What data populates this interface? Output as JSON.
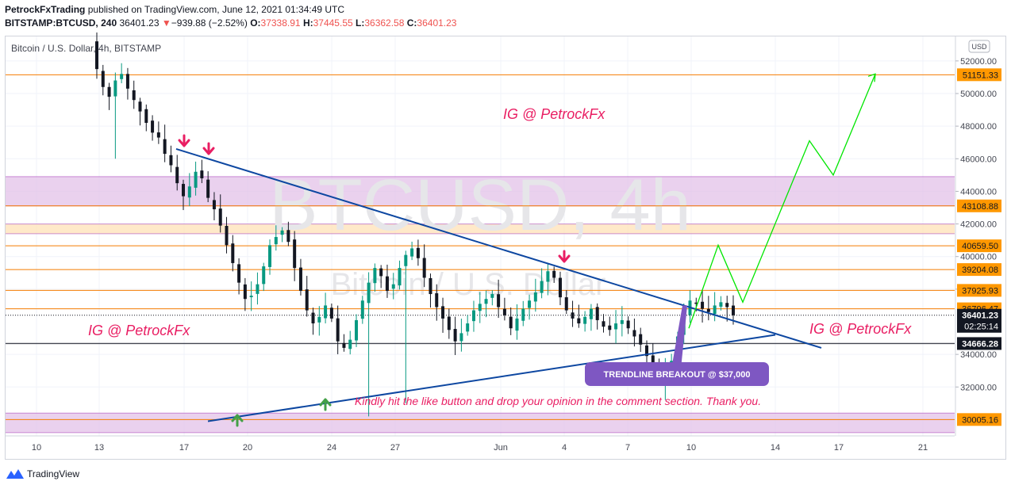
{
  "header": {
    "author": "PetrockFxTrading",
    "published_text": "published on TradingView.com, June 12, 2021 01:34:49 UTC",
    "symbol": "BITSTAMP:BTCUSD, 240",
    "last": "36401.23",
    "change": "−939.88 (−2.52%)",
    "o_label": "O:",
    "o_value": "37338.91",
    "h_label": "H:",
    "h_value": "37445.55",
    "l_label": "L:",
    "l_value": "36362.58",
    "c_label": "C:",
    "c_value": "36401.23",
    "down_triangle": "▼"
  },
  "chart_data": {
    "type": "candlestick",
    "title": "Bitcoin / U.S. Dollar, 4h, BITSTAMP",
    "watermark_symbol": "BTCUSD, 4h",
    "watermark_name": "Bitcoin / U.S. Dollar",
    "currency": "USD",
    "ylim": [
      29000,
      53500
    ],
    "x_ticks": [
      "10",
      "13",
      "17",
      "20",
      "24",
      "27",
      "Jun",
      "4",
      "7",
      "10",
      "14",
      "17",
      "21"
    ],
    "y_ticks": [
      "52000.00",
      "50000.00",
      "48000.00",
      "46000.00",
      "44000.00",
      "42000.00",
      "40000.00",
      "38000.00",
      "34000.00",
      "32000.00"
    ],
    "y_tick_values": [
      52000,
      50000,
      48000,
      46000,
      44000,
      42000,
      40000,
      38000,
      34000,
      32000
    ],
    "horizontal_levels": [
      51151.33,
      43108.88,
      40659.5,
      39204.08,
      37925.93,
      36796.47,
      30005.16
    ],
    "level_labels": [
      "51151.33",
      "43108.88",
      "40659.50",
      "39204.08",
      "37925.93",
      "36796.47",
      "30005.16"
    ],
    "black_level": 34666.28,
    "black_level_label": "34666.28",
    "last_price": 36401.23,
    "last_price_label": "36401.23",
    "countdown": "02:25:14",
    "zones": [
      {
        "low": 43108.88,
        "high": 44900,
        "color": "#e1bee7"
      },
      {
        "low": 41400,
        "high": 42000,
        "color": "#ffe0b2"
      },
      {
        "low": 29200,
        "high": 30400,
        "color": "#e1bee7"
      }
    ],
    "closes": [
      51500,
      50400,
      49800,
      50800,
      51200,
      50300,
      49600,
      48900,
      48200,
      47600,
      47300,
      46300,
      45600,
      44500,
      43700,
      44300,
      45200,
      44800,
      43600,
      42900,
      41900,
      40700,
      39600,
      38400,
      37400,
      37600,
      38300,
      39400,
      40700,
      41200,
      41600,
      40900,
      39300,
      37900,
      36700,
      35900,
      36300,
      37000,
      36200,
      34800,
      34400,
      34900,
      36100,
      37300,
      38400,
      39300,
      38800,
      37900,
      38300,
      39300,
      40100,
      40500,
      39900,
      38700,
      37700,
      36900,
      36200,
      35500,
      34800,
      35300,
      35900,
      36700,
      37100,
      37400,
      37700,
      36900,
      36400,
      35600,
      36200,
      36800,
      37300,
      37800,
      38500,
      39100,
      38700,
      37500,
      36700,
      36200,
      35900,
      36300,
      36800,
      36100,
      35700,
      35500,
      35900,
      36100,
      35600,
      35100,
      34600,
      33900,
      33200,
      32600,
      32900,
      33600,
      35100,
      36400,
      37300,
      37100,
      36800,
      36600,
      37000,
      37200,
      36900,
      36401
    ],
    "annotations": [
      "IG @ PetrockFx",
      "IG @ PetrockFx",
      "IG @ PetrockFx"
    ],
    "breakout_label": "TRENDLINE BREAKOUT @ $37,000",
    "note": "Kindly hit the like button and drop your opinion in the comment section. Thank you."
  },
  "colors": {
    "up": "#089981",
    "down": "#131722",
    "level_line": "#f57c00",
    "level_badge": "#ff9800",
    "trendline": "#0d47a1",
    "projection": "#00e600",
    "annotation": "#e91e63",
    "breakout_bg": "#7e57c2",
    "up_arrow": "#43a047",
    "down_arrow": "#e91e63"
  },
  "footer": {
    "brand": "TradingView"
  }
}
